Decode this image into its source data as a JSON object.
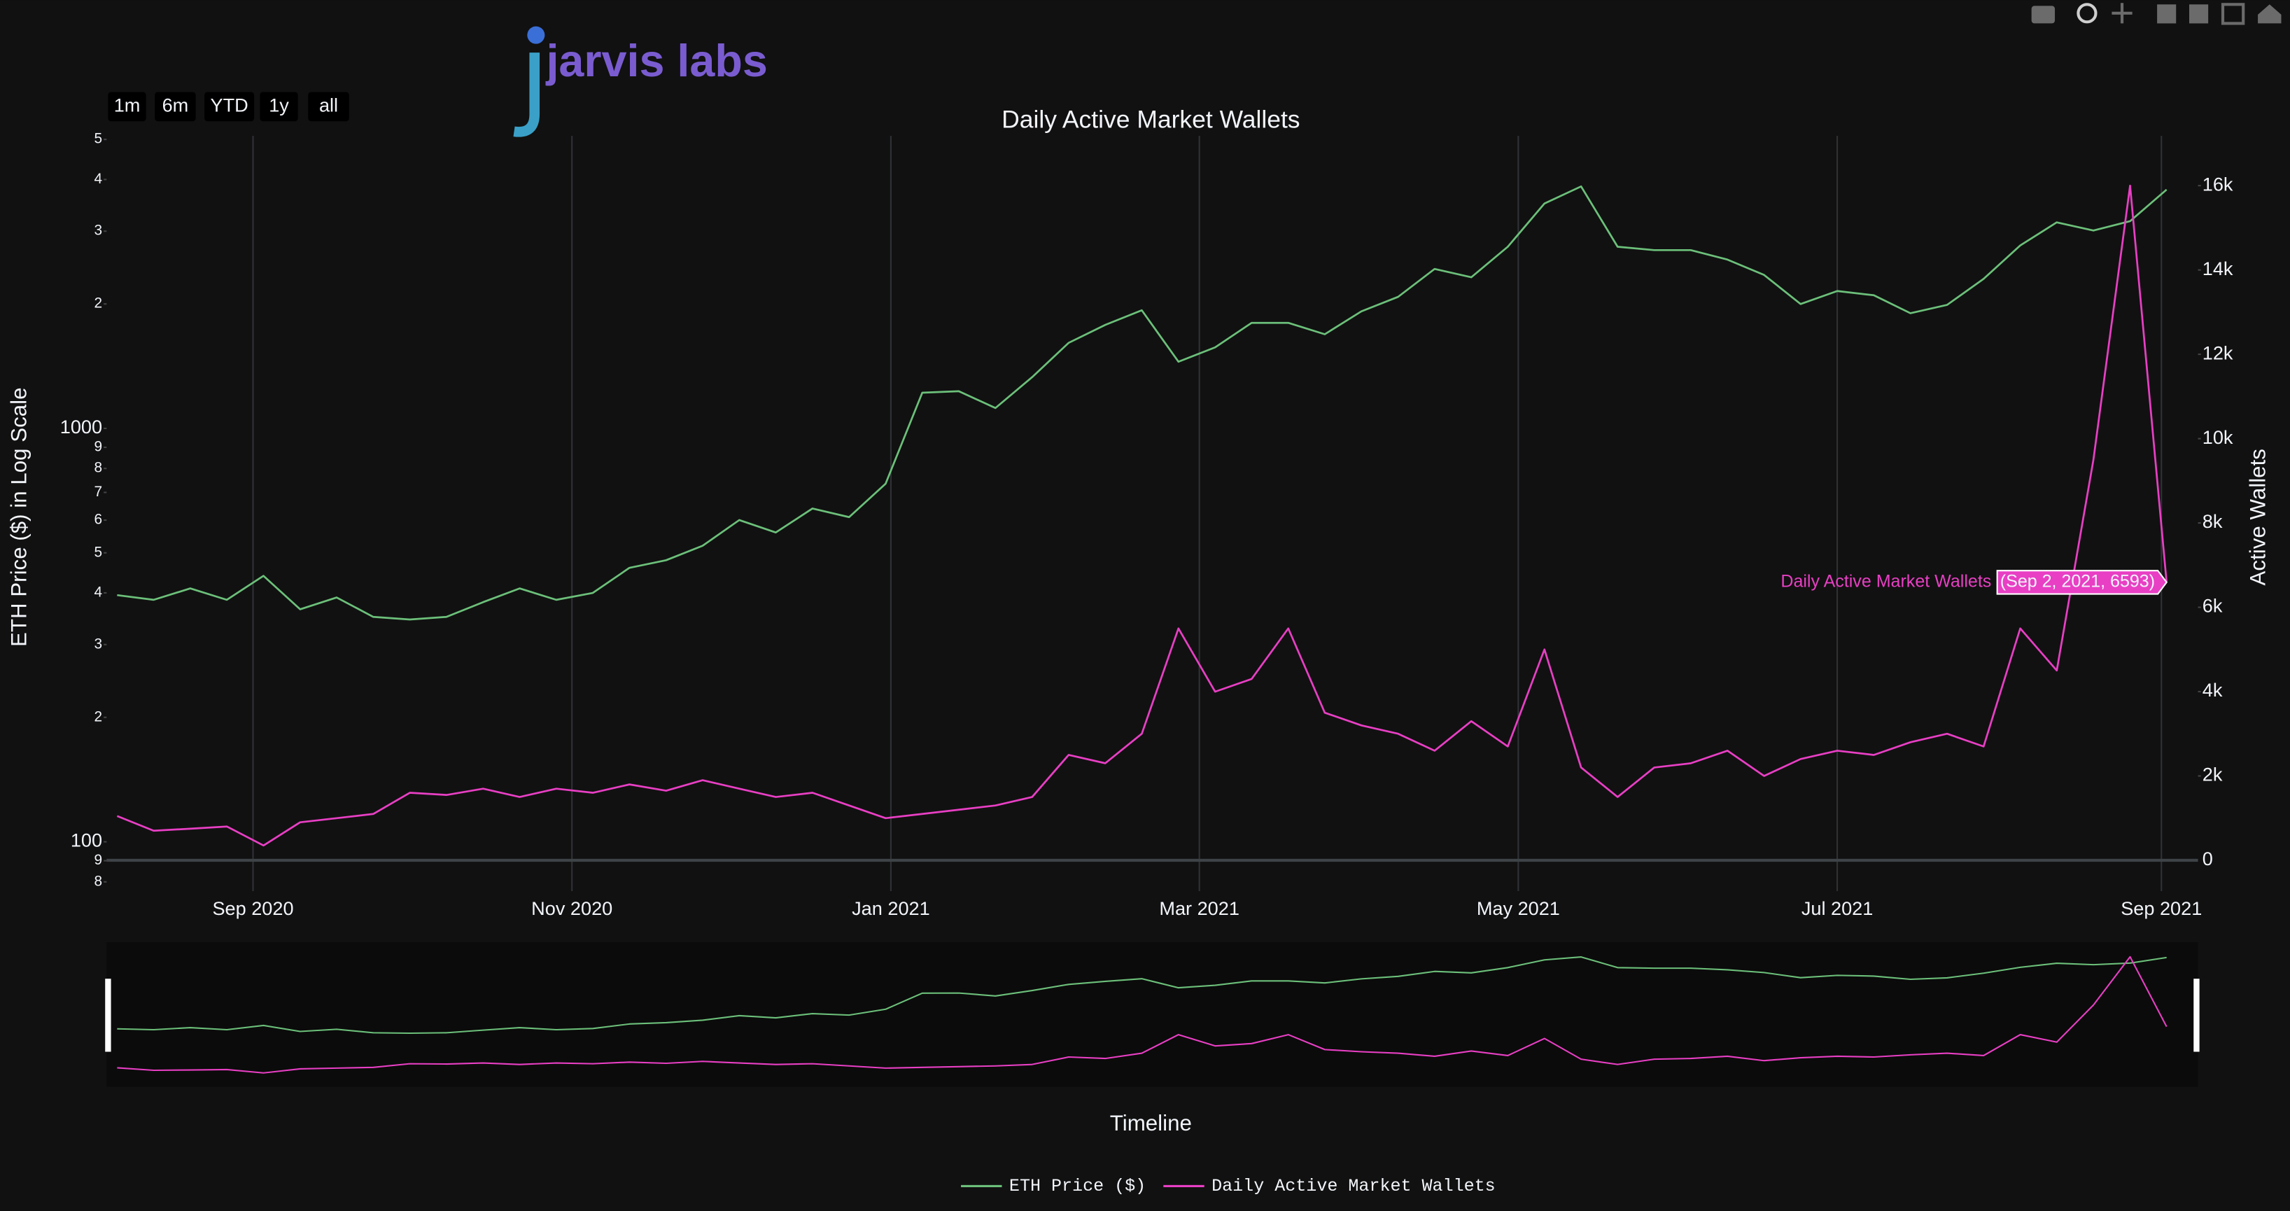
{
  "logo": "jarvis labs",
  "chart_data": {
    "type": "line",
    "title": "Daily Active Market Wallets",
    "range_buttons": [
      "1m",
      "6m",
      "YTD",
      "1y",
      "all"
    ],
    "x_label": "Timeline",
    "y_label": "ETH Price ($) in Log Scale",
    "y2_label": "Active Wallets",
    "ylog": true,
    "grid": true,
    "legend": "bottom",
    "hover": {
      "name": "Daily Active Market Wallets",
      "label": "(Sep 2, 2021, 6593)"
    },
    "xlim": [
      "2020-08-04",
      "2021-09-08"
    ],
    "xticks": [
      {
        "value": "2020-09-01",
        "label": "Sep 2020"
      },
      {
        "value": "2020-11-01",
        "label": "Nov 2020"
      },
      {
        "value": "2021-01-01",
        "label": "Jan 2021"
      },
      {
        "value": "2021-03-01",
        "label": "Mar 2021"
      },
      {
        "value": "2021-05-01",
        "label": "May 2021"
      },
      {
        "value": "2021-07-01",
        "label": "Jul 2021"
      },
      {
        "value": "2021-09-01",
        "label": "Sep 2021"
      }
    ],
    "ylim": [
      76,
      5100
    ],
    "yticks": [
      {
        "value": 80,
        "label": "8"
      },
      {
        "value": 90,
        "label": "9"
      },
      100,
      {
        "value": 200,
        "label": "2"
      },
      {
        "value": 300,
        "label": "3"
      },
      {
        "value": 400,
        "label": "4"
      },
      {
        "value": 500,
        "label": "5"
      },
      {
        "value": 600,
        "label": "6"
      },
      {
        "value": 700,
        "label": "7"
      },
      {
        "value": 800,
        "label": "8"
      },
      {
        "value": 900,
        "label": "9"
      },
      1000,
      {
        "value": 2000,
        "label": "2"
      },
      {
        "value": 3000,
        "label": "3"
      },
      {
        "value": 4000,
        "label": "4"
      },
      {
        "value": 5000,
        "label": "5"
      }
    ],
    "y2lim": [
      -730,
      17180
    ],
    "y2ticks": [
      0,
      {
        "value": 2000,
        "label": "2k"
      },
      {
        "value": 4000,
        "label": "4k"
      },
      {
        "value": 6000,
        "label": "6k"
      },
      {
        "value": 8000,
        "label": "8k"
      },
      {
        "value": 10000,
        "label": "10k"
      },
      {
        "value": 12000,
        "label": "12k"
      },
      {
        "value": 14000,
        "label": "14k"
      },
      {
        "value": 16000,
        "label": "16k"
      }
    ],
    "x": [
      "2020-08-06",
      "2020-08-13",
      "2020-08-20",
      "2020-08-27",
      "2020-09-03",
      "2020-09-10",
      "2020-09-17",
      "2020-09-24",
      "2020-10-01",
      "2020-10-08",
      "2020-10-15",
      "2020-10-22",
      "2020-10-29",
      "2020-11-05",
      "2020-11-12",
      "2020-11-19",
      "2020-11-26",
      "2020-12-03",
      "2020-12-10",
      "2020-12-17",
      "2020-12-24",
      "2020-12-31",
      "2021-01-07",
      "2021-01-14",
      "2021-01-21",
      "2021-01-28",
      "2021-02-04",
      "2021-02-11",
      "2021-02-18",
      "2021-02-25",
      "2021-03-04",
      "2021-03-11",
      "2021-03-18",
      "2021-03-25",
      "2021-04-01",
      "2021-04-08",
      "2021-04-15",
      "2021-04-22",
      "2021-04-29",
      "2021-05-06",
      "2021-05-13",
      "2021-05-20",
      "2021-05-27",
      "2021-06-03",
      "2021-06-10",
      "2021-06-17",
      "2021-06-24",
      "2021-07-01",
      "2021-07-08",
      "2021-07-15",
      "2021-07-22",
      "2021-07-29",
      "2021-08-05",
      "2021-08-12",
      "2021-08-19",
      "2021-08-26",
      "2021-09-02"
    ],
    "series": [
      {
        "name": "ETH Price ($)",
        "color": "#6cc07a",
        "values": [
          395,
          385,
          410,
          385,
          440,
          365,
          390,
          350,
          345,
          350,
          380,
          410,
          385,
          400,
          460,
          480,
          520,
          600,
          560,
          640,
          610,
          735,
          1220,
          1230,
          1120,
          1330,
          1610,
          1780,
          1930,
          1450,
          1570,
          1800,
          1800,
          1690,
          1920,
          2080,
          2430,
          2320,
          2750,
          3500,
          3850,
          2750,
          2700,
          2700,
          2560,
          2350,
          2000,
          2150,
          2100,
          1900,
          1990,
          2300,
          2770,
          3150,
          3010,
          3170,
          3780
        ]
      },
      {
        "name": "Daily Active Market Wallets",
        "color": "#e83fc4",
        "axis": "y2",
        "values": [
          1050,
          700,
          750,
          800,
          350,
          900,
          1000,
          1100,
          1600,
          1550,
          1700,
          1500,
          1700,
          1600,
          1800,
          1650,
          1900,
          1700,
          1500,
          1600,
          1300,
          1000,
          1100,
          1200,
          1300,
          1500,
          2500,
          2300,
          3000,
          5500,
          4000,
          4300,
          5500,
          3500,
          3200,
          3000,
          2600,
          3300,
          2700,
          5000,
          2200,
          1500,
          2200,
          2300,
          2600,
          2000,
          2400,
          2600,
          2500,
          2800,
          3000,
          2700,
          5500,
          4500,
          9500,
          16000,
          6593
        ]
      }
    ]
  }
}
